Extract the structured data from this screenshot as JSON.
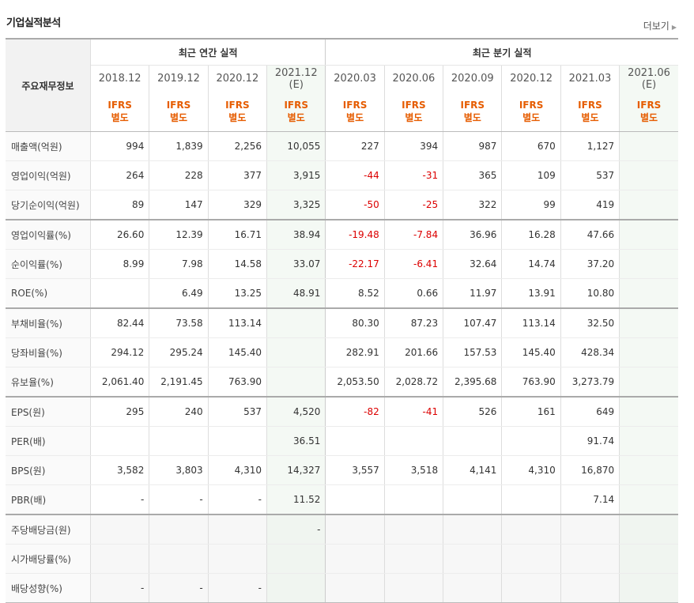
{
  "page": {
    "title": "기업실적분석",
    "more_label": "더보기"
  },
  "table": {
    "row_header_label": "주요재무정보",
    "group_annual": "최근 연간 실적",
    "group_quarter": "최근 분기 실적",
    "periods": [
      {
        "label": "2018.12",
        "sub": "",
        "ifrs": "IFRS",
        "basis": "별도",
        "estimate": false
      },
      {
        "label": "2019.12",
        "sub": "",
        "ifrs": "IFRS",
        "basis": "별도",
        "estimate": false
      },
      {
        "label": "2020.12",
        "sub": "",
        "ifrs": "IFRS",
        "basis": "별도",
        "estimate": false
      },
      {
        "label": "2021.12",
        "sub": "(E)",
        "ifrs": "IFRS",
        "basis": "별도",
        "estimate": true
      },
      {
        "label": "2020.03",
        "sub": "",
        "ifrs": "IFRS",
        "basis": "별도",
        "estimate": false
      },
      {
        "label": "2020.06",
        "sub": "",
        "ifrs": "IFRS",
        "basis": "별도",
        "estimate": false
      },
      {
        "label": "2020.09",
        "sub": "",
        "ifrs": "IFRS",
        "basis": "별도",
        "estimate": false
      },
      {
        "label": "2020.12",
        "sub": "",
        "ifrs": "IFRS",
        "basis": "별도",
        "estimate": false
      },
      {
        "label": "2021.03",
        "sub": "",
        "ifrs": "IFRS",
        "basis": "별도",
        "estimate": false
      },
      {
        "label": "2021.06",
        "sub": "(E)",
        "ifrs": "IFRS",
        "basis": "별도",
        "estimate": true
      }
    ],
    "rows": [
      {
        "label": "매출액(억원)",
        "values": [
          "994",
          "1,839",
          "2,256",
          "10,055",
          "227",
          "394",
          "987",
          "670",
          "1,127",
          ""
        ]
      },
      {
        "label": "영업이익(억원)",
        "values": [
          "264",
          "228",
          "377",
          "3,915",
          "-44",
          "-31",
          "365",
          "109",
          "537",
          ""
        ]
      },
      {
        "label": "당기순이익(억원)",
        "values": [
          "89",
          "147",
          "329",
          "3,325",
          "-50",
          "-25",
          "322",
          "99",
          "419",
          ""
        ]
      },
      {
        "label": "영업이익률(%)",
        "values": [
          "26.60",
          "12.39",
          "16.71",
          "38.94",
          "-19.48",
          "-7.84",
          "36.96",
          "16.28",
          "47.66",
          ""
        ]
      },
      {
        "label": "순이익률(%)",
        "values": [
          "8.99",
          "7.98",
          "14.58",
          "33.07",
          "-22.17",
          "-6.41",
          "32.64",
          "14.74",
          "37.20",
          ""
        ]
      },
      {
        "label": "ROE(%)",
        "values": [
          "",
          "6.49",
          "13.25",
          "48.91",
          "8.52",
          "0.66",
          "11.97",
          "13.91",
          "10.80",
          ""
        ]
      },
      {
        "label": "부채비율(%)",
        "values": [
          "82.44",
          "73.58",
          "113.14",
          "",
          "80.30",
          "87.23",
          "107.47",
          "113.14",
          "32.50",
          ""
        ]
      },
      {
        "label": "당좌비율(%)",
        "values": [
          "294.12",
          "295.24",
          "145.40",
          "",
          "282.91",
          "201.66",
          "157.53",
          "145.40",
          "428.34",
          ""
        ]
      },
      {
        "label": "유보율(%)",
        "values": [
          "2,061.40",
          "2,191.45",
          "763.90",
          "",
          "2,053.50",
          "2,028.72",
          "2,395.68",
          "763.90",
          "3,273.79",
          ""
        ]
      },
      {
        "label": "EPS(원)",
        "values": [
          "295",
          "240",
          "537",
          "4,520",
          "-82",
          "-41",
          "526",
          "161",
          "649",
          ""
        ]
      },
      {
        "label": "PER(배)",
        "values": [
          "",
          "",
          "",
          "36.51",
          "",
          "",
          "",
          "",
          "91.74",
          ""
        ]
      },
      {
        "label": "BPS(원)",
        "values": [
          "3,582",
          "3,803",
          "4,310",
          "14,327",
          "3,557",
          "3,518",
          "4,141",
          "4,310",
          "16,870",
          ""
        ]
      },
      {
        "label": "PBR(배)",
        "values": [
          "-",
          "-",
          "-",
          "11.52",
          "",
          "",
          "",
          "",
          "7.14",
          ""
        ]
      },
      {
        "label": "주당배당금(원)",
        "values": [
          "",
          "",
          "",
          "-",
          "",
          "",
          "",
          "",
          "",
          ""
        ]
      },
      {
        "label": "시가배당률(%)",
        "values": [
          "",
          "",
          "",
          "",
          "",
          "",
          "",
          "",
          "",
          ""
        ]
      },
      {
        "label": "배당성향(%)",
        "values": [
          "-",
          "-",
          "-",
          "",
          "",
          "",
          "",
          "",
          "",
          ""
        ]
      }
    ],
    "group_ends": [
      2,
      5,
      8,
      12
    ],
    "dim_rows": [
      13,
      14,
      15
    ]
  },
  "colors": {
    "ifrs_orange": "#e65c00",
    "negative_red": "#dc0000",
    "estimate_bg": "#f4f9f4",
    "header_bg": "#f2f2f2"
  }
}
